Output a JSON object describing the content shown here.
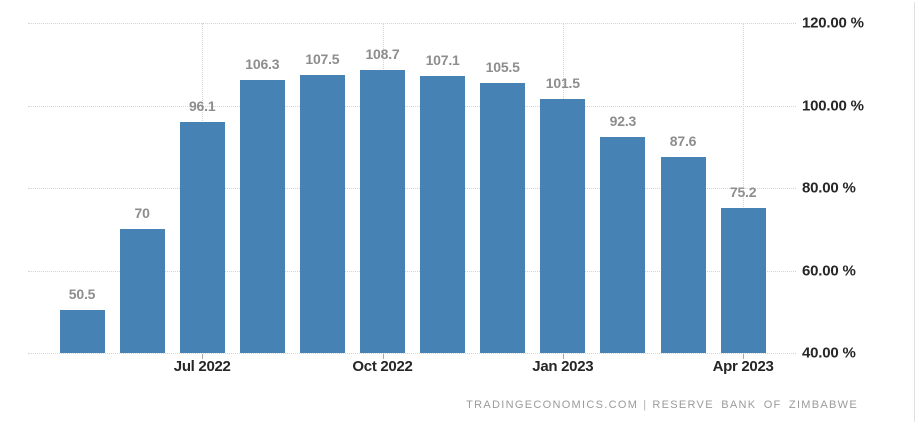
{
  "chart_data": {
    "type": "bar",
    "values": [
      50.5,
      70,
      96.1,
      106.3,
      107.5,
      108.7,
      107.1,
      105.5,
      101.5,
      92.3,
      87.6,
      75.2
    ],
    "labels": [
      "50.5",
      "70",
      "96.1",
      "106.3",
      "107.5",
      "108.7",
      "107.1",
      "105.5",
      "101.5",
      "92.3",
      "87.6",
      "75.2"
    ],
    "x_ticks": [
      {
        "label": "Jul 2022",
        "bar_index": 2
      },
      {
        "label": "Oct 2022",
        "bar_index": 5
      },
      {
        "label": "Jan 2023",
        "bar_index": 8
      },
      {
        "label": "Apr 2023",
        "bar_index": 11
      }
    ],
    "y_ticks": [
      "120.00 %",
      "100.00 %",
      "80.00 %",
      "60.00 %",
      "40.00 %"
    ],
    "y_axis": {
      "min": 40,
      "max": 120,
      "step": 20,
      "side": "right",
      "unit": "%"
    },
    "grid": "dotted",
    "legend": "none",
    "bar_color": "#4782b4",
    "attribution": {
      "site": "TRADINGECONOMICS.COM",
      "separator": "|",
      "source": "RESERVE BANK OF ZIMBABWE"
    }
  }
}
